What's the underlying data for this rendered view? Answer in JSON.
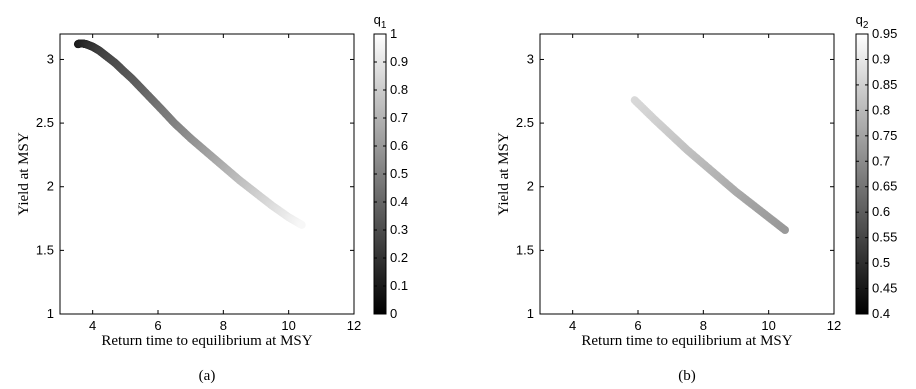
{
  "chart_data": [
    {
      "type": "scatter",
      "caption": "(a)",
      "xlabel": "Return time to equilibrium at MSY",
      "ylabel": "Yield at MSY",
      "xlim": [
        3,
        12
      ],
      "ylim": [
        1,
        3.2
      ],
      "xticks": [
        4,
        6,
        8,
        10,
        12
      ],
      "yticks": [
        1,
        1.5,
        2,
        2.5,
        3
      ],
      "grid": false,
      "colorbar": {
        "label": "q",
        "label_subscript": "1",
        "range": [
          0,
          1
        ],
        "ticks": [
          "0",
          "0.1",
          "0.2",
          "0.3",
          "0.4",
          "0.5",
          "0.6",
          "0.7",
          "0.8",
          "0.9",
          "1"
        ],
        "colormap": "gray"
      },
      "series": [
        {
          "x": [
            3.55,
            3.6,
            3.7,
            3.8,
            3.9,
            4.0,
            4.1,
            4.2,
            4.35,
            4.5,
            4.7,
            4.9,
            5.2,
            5.5,
            5.8,
            6.1,
            6.5,
            7.0,
            7.5,
            8.0,
            8.5,
            9.0,
            9.5,
            10.0,
            10.4
          ],
          "y": [
            3.12,
            3.125,
            3.125,
            3.12,
            3.11,
            3.1,
            3.085,
            3.07,
            3.04,
            3.01,
            2.97,
            2.92,
            2.85,
            2.77,
            2.69,
            2.61,
            2.5,
            2.38,
            2.27,
            2.16,
            2.05,
            1.95,
            1.85,
            1.76,
            1.7
          ],
          "color_value": [
            0.1,
            0.12,
            0.14,
            0.16,
            0.18,
            0.2,
            0.22,
            0.24,
            0.26,
            0.28,
            0.3,
            0.32,
            0.35,
            0.38,
            0.42,
            0.46,
            0.5,
            0.56,
            0.62,
            0.68,
            0.74,
            0.8,
            0.86,
            0.92,
            0.97
          ]
        }
      ]
    },
    {
      "type": "scatter",
      "caption": "(b)",
      "xlabel": "Return time to equilibrium at MSY",
      "ylabel": "Yield at MSY",
      "xlim": [
        3,
        12
      ],
      "ylim": [
        1,
        3.2
      ],
      "xticks": [
        4,
        6,
        8,
        10,
        12
      ],
      "yticks": [
        1,
        1.5,
        2,
        2.5,
        3
      ],
      "grid": false,
      "colorbar": {
        "label": "q",
        "label_subscript": "2",
        "range": [
          0.4,
          0.95
        ],
        "ticks": [
          "0.4",
          "0.45",
          "0.5",
          "0.55",
          "0.6",
          "0.65",
          "0.7",
          "0.75",
          "0.8",
          "0.85",
          "0.9",
          "0.95"
        ],
        "colormap": "gray"
      },
      "series": [
        {
          "x": [
            5.9,
            6.5,
            7.0,
            7.5,
            8.0,
            8.5,
            9.0,
            9.5,
            10.0,
            10.5
          ],
          "y": [
            2.68,
            2.53,
            2.41,
            2.29,
            2.18,
            2.07,
            1.96,
            1.86,
            1.76,
            1.66
          ],
          "color_value": [
            0.85,
            0.82,
            0.79,
            0.76,
            0.73,
            0.7,
            0.67,
            0.64,
            0.62,
            0.6
          ]
        }
      ]
    }
  ]
}
